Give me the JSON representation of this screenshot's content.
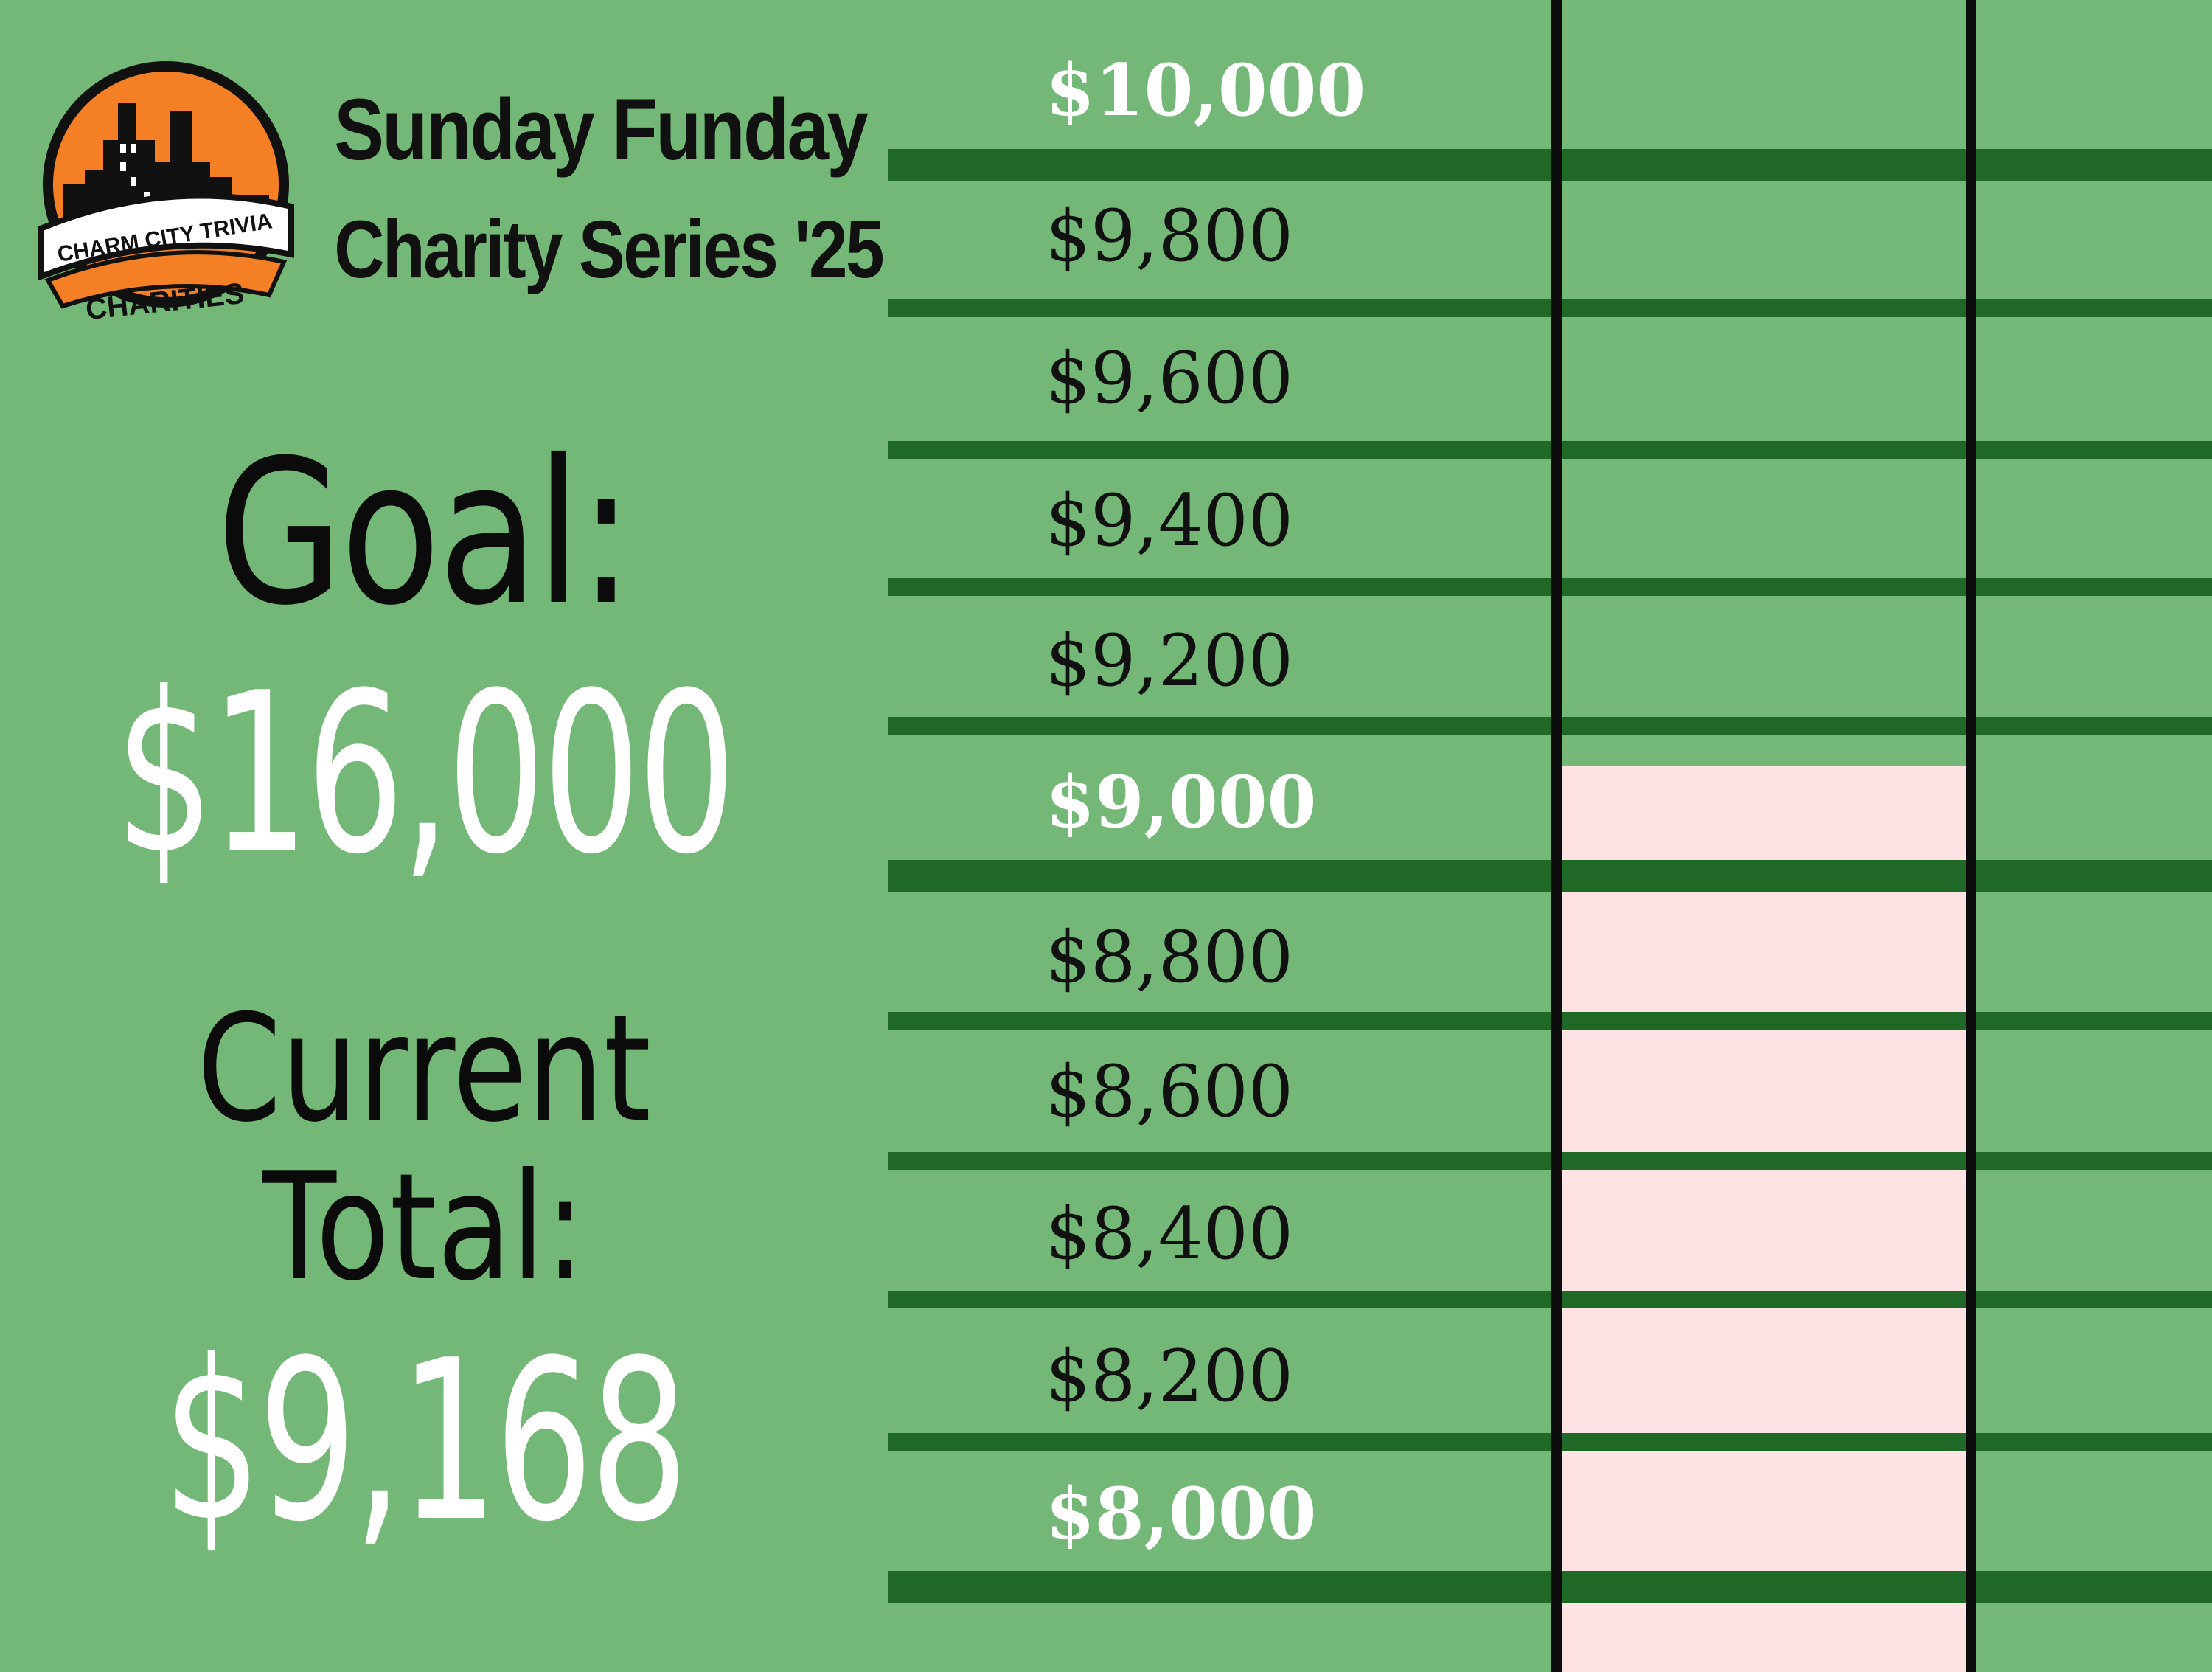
{
  "header": {
    "title_line1": "Sunday Funday",
    "title_line2": "Charity Series '25"
  },
  "logo": {
    "banner_text": "CHARM CITY TRIVIA",
    "sub_text": "CHARITIES",
    "colors": {
      "sun": "#f47f25",
      "skyline": "#111111",
      "banner": "#ffffff"
    }
  },
  "goal": {
    "label": "Goal:",
    "amount": "$16,000"
  },
  "current": {
    "label_line1": "Current",
    "label_line2": "Total:",
    "amount": "$9,168"
  },
  "thermometer": {
    "levels": [
      "$10,000",
      "$9,800",
      "$9,600",
      "$9,400",
      "$9,200",
      "$9,000",
      "$8,800",
      "$8,600",
      "$8,400",
      "$8,200",
      "$8,000"
    ],
    "highlighted_levels": [
      "$10,000",
      "$9,000",
      "$8,000"
    ],
    "fill_top_value": 9168,
    "colors": {
      "background": "#73b877",
      "grid": "#1f6826",
      "fill": "#fde3e3",
      "tube": "#0b0b0b"
    }
  }
}
